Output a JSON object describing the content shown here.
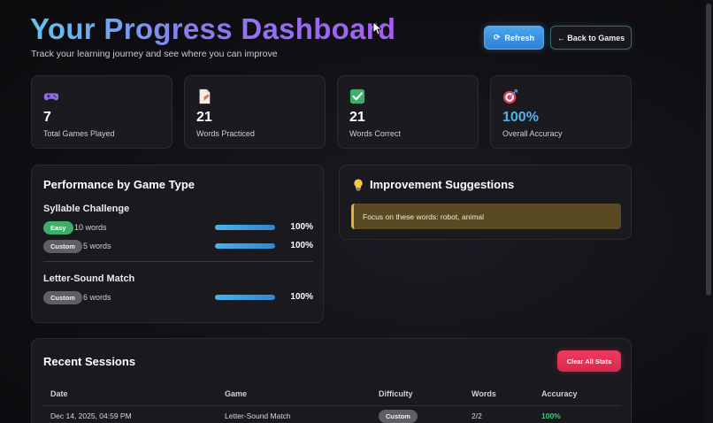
{
  "header": {
    "title": "Your Progress Dashboard",
    "subtitle": "Track your learning journey and see where you can improve",
    "refresh_label": "Refresh",
    "back_label": "← Back to Games"
  },
  "stats": [
    {
      "icon": "gamepad-icon",
      "value": "7",
      "label": "Total Games Played"
    },
    {
      "icon": "document-icon",
      "value": "21",
      "label": "Words Practiced"
    },
    {
      "icon": "checkmark-icon",
      "value": "21",
      "label": "Words Correct"
    },
    {
      "icon": "target-icon",
      "value": "100%",
      "label": "Overall Accuracy"
    }
  ],
  "performance": {
    "title": "Performance by Game Type",
    "games": [
      {
        "name": "Syllable Challenge",
        "rows": [
          {
            "difficulty": "Easy",
            "words": "10 words",
            "percent": "100%",
            "fill": 1.0
          },
          {
            "difficulty": "Custom",
            "words": "5 words",
            "percent": "100%",
            "fill": 1.0
          }
        ]
      },
      {
        "name": "Letter-Sound Match",
        "rows": [
          {
            "difficulty": "Custom",
            "words": "6 words",
            "percent": "100%",
            "fill": 1.0
          }
        ]
      }
    ]
  },
  "suggestions": {
    "title": "Improvement Suggestions",
    "icon": "lightbulb-icon",
    "text": "Focus on these words: robot, animal"
  },
  "sessions": {
    "title": "Recent Sessions",
    "clear_label": "Clear All Stats",
    "columns": [
      "Date",
      "Game",
      "Difficulty",
      "Words",
      "Accuracy"
    ],
    "rows": [
      {
        "date": "Dec 14, 2025, 04:59 PM",
        "game": "Letter-Sound Match",
        "difficulty": "Custom",
        "words": "2/2",
        "accuracy": "100%"
      }
    ]
  },
  "colors": {
    "accent_blue": "#4aa6ec",
    "easy_green": "#3fae6a",
    "danger_red": "#ef3a5e",
    "suggestion_gold": "#e0b23c",
    "accuracy_green": "#45c77b"
  }
}
